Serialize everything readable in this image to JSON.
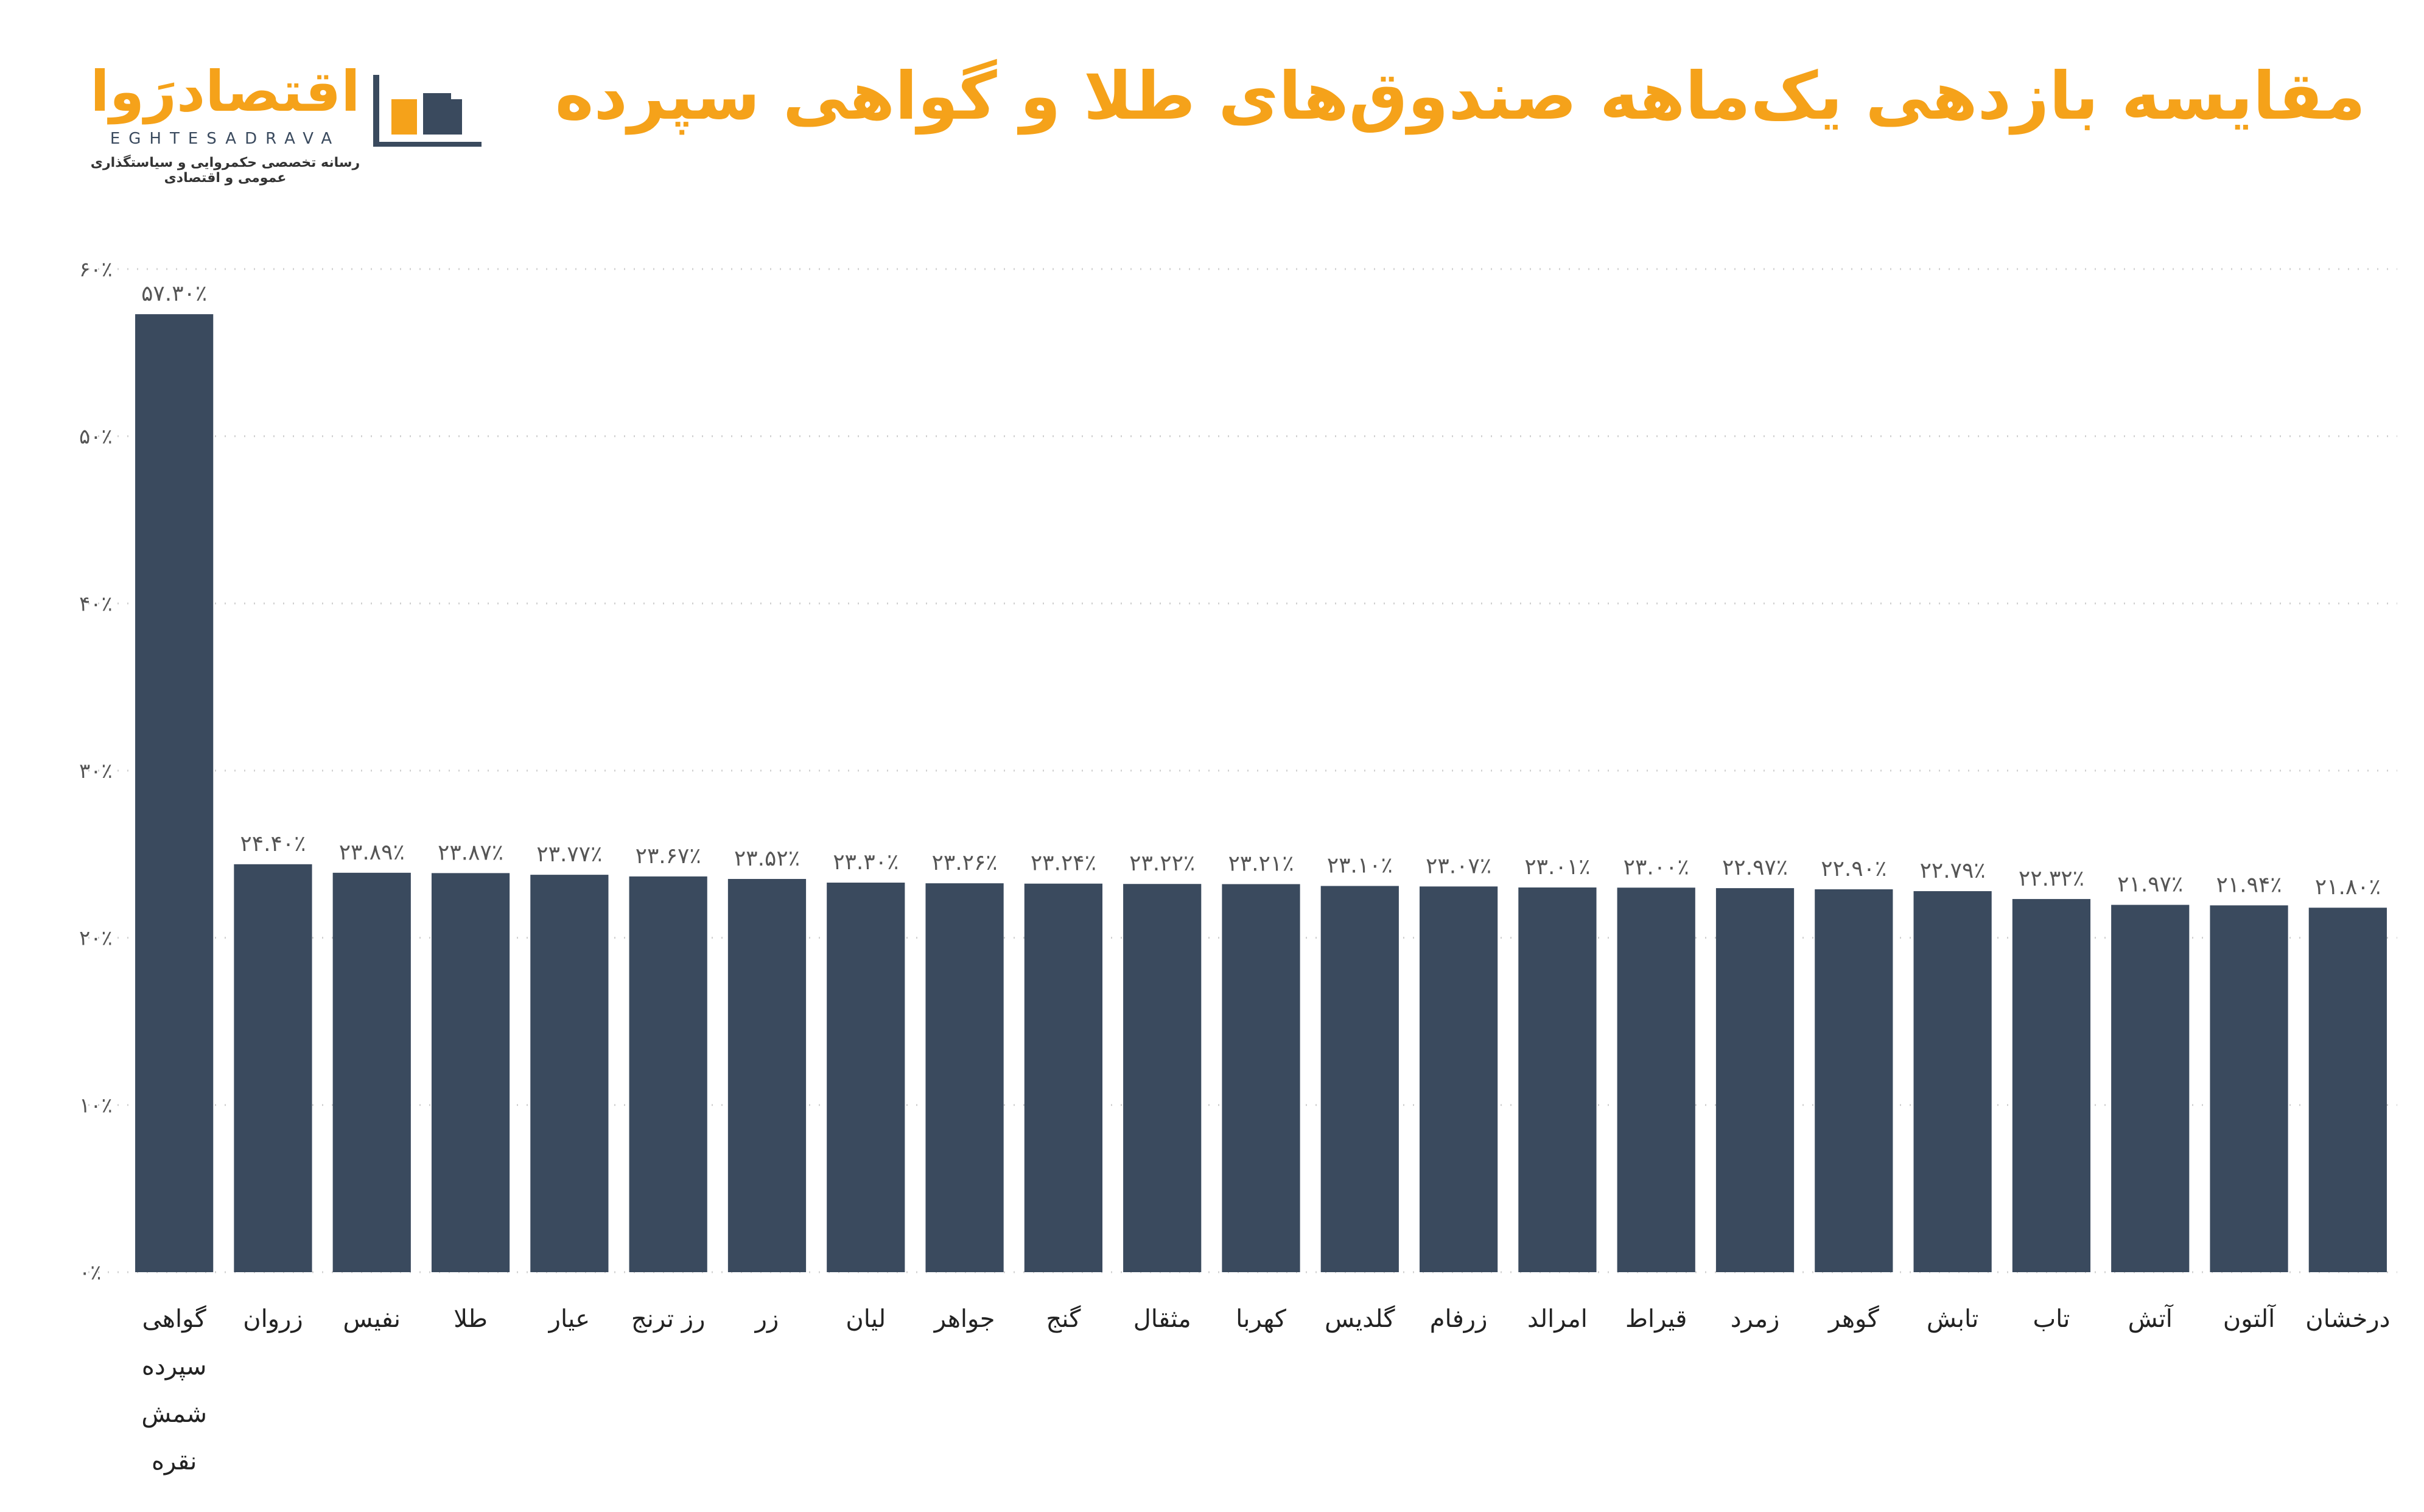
{
  "header": {
    "title": "مقایسه بازدهی یک‌ماهه صندوق‌های طلا و گواهی سپرده"
  },
  "logo": {
    "name": "اقتصادرَوا",
    "latin": "EGHTESADRAVA",
    "tagline": "رسانه تخصصی حکمروایی و سیاستگذاری عمومی و اقتصادی"
  },
  "colors": {
    "bar": "#3A4A5E",
    "title": "#F5A21A",
    "grid": "#CFCFCF"
  },
  "chart_data": {
    "type": "bar",
    "title": "مقایسه بازدهی یک‌ماهه صندوق‌های طلا و گواهی سپرده",
    "xlabel": "",
    "ylabel": "",
    "ylim": [
      0,
      60
    ],
    "grid": true,
    "y_ticks": [
      {
        "value": 0,
        "label": "۰٪"
      },
      {
        "value": 10,
        "label": "۱۰٪"
      },
      {
        "value": 20,
        "label": "۲۰٪"
      },
      {
        "value": 30,
        "label": "۳۰٪"
      },
      {
        "value": 40,
        "label": "۴۰٪"
      },
      {
        "value": 50,
        "label": "۵۰٪"
      },
      {
        "value": 60,
        "label": "۶۰٪"
      }
    ],
    "categories": [
      [
        "گواهی",
        "سپرده",
        "شمش",
        "نقره"
      ],
      [
        "زروان"
      ],
      [
        "نفیس"
      ],
      [
        "طلا"
      ],
      [
        "عیار"
      ],
      [
        "رز ترنج"
      ],
      [
        "زر"
      ],
      [
        "لیان"
      ],
      [
        "جواهر"
      ],
      [
        "گنج"
      ],
      [
        "مثقال"
      ],
      [
        "کهربا"
      ],
      [
        "گلدیس"
      ],
      [
        "زرفام"
      ],
      [
        "امرالد"
      ],
      [
        "قیراط"
      ],
      [
        "زمرد"
      ],
      [
        "گوهر"
      ],
      [
        "تابش"
      ],
      [
        "تاب"
      ],
      [
        "آتش"
      ],
      [
        "آلتون"
      ],
      [
        "درخشان"
      ]
    ],
    "values": [
      57.3,
      24.4,
      23.89,
      23.87,
      23.77,
      23.67,
      23.52,
      23.3,
      23.26,
      23.24,
      23.22,
      23.21,
      23.1,
      23.07,
      23.01,
      23.0,
      22.97,
      22.9,
      22.79,
      22.32,
      21.97,
      21.94,
      21.8
    ],
    "value_labels": [
      "۵۷.۳۰٪",
      "۲۴.۴۰٪",
      "۲۳.۸۹٪",
      "۲۳.۸۷٪",
      "۲۳.۷۷٪",
      "۲۳.۶۷٪",
      "۲۳.۵۲٪",
      "۲۳.۳۰٪",
      "۲۳.۲۶٪",
      "۲۳.۲۴٪",
      "۲۳.۲۲٪",
      "۲۳.۲۱٪",
      "۲۳.۱۰٪",
      "۲۳.۰۷٪",
      "۲۳.۰۱٪",
      "۲۳.۰۰٪",
      "۲۲.۹۷٪",
      "۲۲.۹۰٪",
      "۲۲.۷۹٪",
      "۲۲.۳۲٪",
      "۲۱.۹۷٪",
      "۲۱.۹۴٪",
      "۲۱.۸۰٪"
    ]
  }
}
